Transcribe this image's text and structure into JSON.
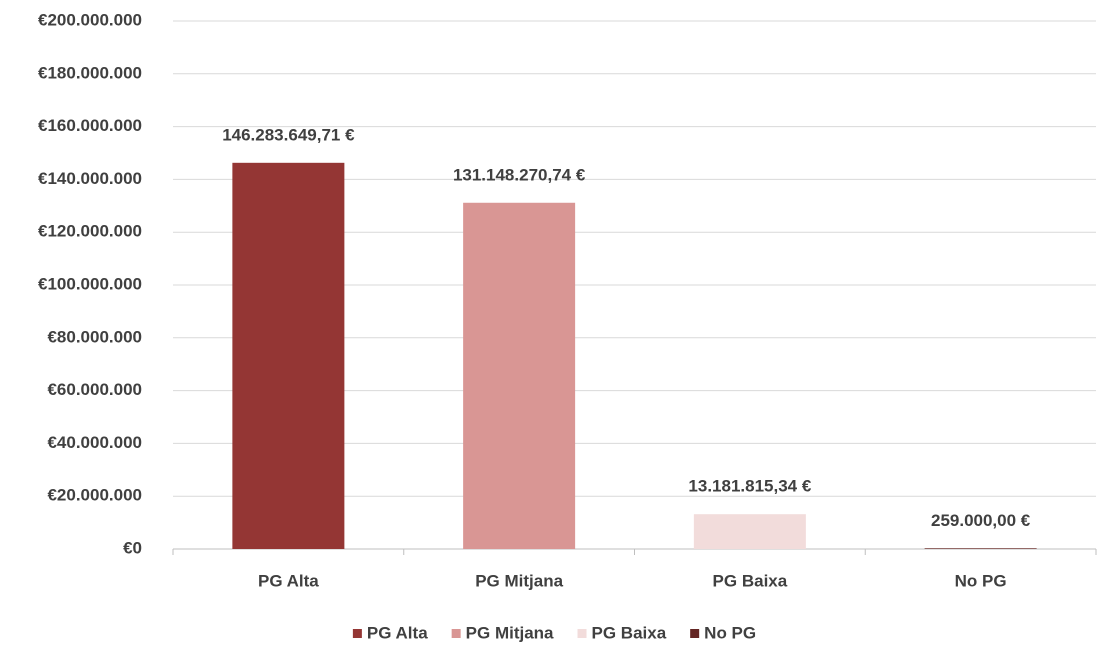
{
  "chart_data": {
    "type": "bar",
    "categories": [
      "PG Alta",
      "PG Mitjana",
      "PG Baixa",
      "No PG"
    ],
    "values": [
      146283649.71,
      131148270.74,
      13181815.34,
      259000
    ],
    "value_labels": [
      "146.283.649,71 €",
      "131.148.270,74 €",
      "13.181.815,34 €",
      "259.000,00 €"
    ],
    "colors": [
      "#943634",
      "#d99694",
      "#f2dcdb",
      "#632523"
    ],
    "ylim": [
      0,
      200000000
    ],
    "yticks": [
      {
        "value": 0,
        "label": "€0"
      },
      {
        "value": 20000000,
        "label": "€20.000.000"
      },
      {
        "value": 40000000,
        "label": "€40.000.000"
      },
      {
        "value": 60000000,
        "label": "€60.000.000"
      },
      {
        "value": 80000000,
        "label": "€80.000.000"
      },
      {
        "value": 100000000,
        "label": "€100.000.000"
      },
      {
        "value": 120000000,
        "label": "€120.000.000"
      },
      {
        "value": 140000000,
        "label": "€140.000.000"
      },
      {
        "value": 160000000,
        "label": "€160.000.000"
      },
      {
        "value": 180000000,
        "label": "€180.000.000"
      },
      {
        "value": 200000000,
        "label": "€200.000.000"
      }
    ],
    "grid": true,
    "legend": "bottom"
  }
}
